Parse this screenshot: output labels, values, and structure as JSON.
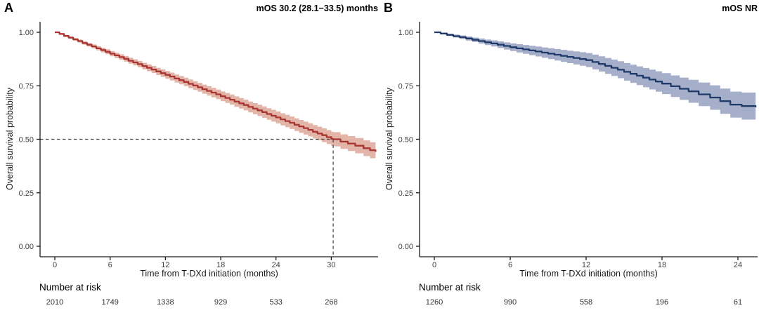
{
  "chart_data": [
    {
      "type": "line",
      "subtype": "kaplan-meier",
      "panel_label": "A",
      "title": "mOS 30.2 (28.1−33.5) months",
      "xlabel": "Time from T-DXd initiation (months)",
      "ylabel": "Overall survival probability",
      "x_ticks": [
        0,
        6,
        12,
        18,
        24,
        30
      ],
      "xlim": [
        0,
        35
      ],
      "y_ticks": [
        "0.00",
        "0.25",
        "0.50",
        "0.75",
        "1.00"
      ],
      "ylim": [
        0,
        1
      ],
      "line_color": "#A93532",
      "band_color": "#E2B5A8",
      "median": {
        "time": 30.2,
        "prob": 0.5
      },
      "survival": [
        [
          0,
          1.0
        ],
        [
          0.5,
          0.992
        ],
        [
          1,
          0.983
        ],
        [
          1.5,
          0.975
        ],
        [
          2,
          0.967
        ],
        [
          2.5,
          0.959
        ],
        [
          3,
          0.95
        ],
        [
          3.5,
          0.942
        ],
        [
          4,
          0.934
        ],
        [
          4.5,
          0.925
        ],
        [
          5,
          0.917
        ],
        [
          5.5,
          0.909
        ],
        [
          6,
          0.9
        ],
        [
          6.5,
          0.892
        ],
        [
          7,
          0.884
        ],
        [
          7.5,
          0.876
        ],
        [
          8,
          0.867
        ],
        [
          8.5,
          0.859
        ],
        [
          9,
          0.851
        ],
        [
          9.5,
          0.842
        ],
        [
          10,
          0.834
        ],
        [
          10.5,
          0.826
        ],
        [
          11,
          0.817
        ],
        [
          11.5,
          0.809
        ],
        [
          12,
          0.801
        ],
        [
          12.5,
          0.793
        ],
        [
          13,
          0.784
        ],
        [
          13.5,
          0.776
        ],
        [
          14,
          0.768
        ],
        [
          14.5,
          0.759
        ],
        [
          15,
          0.751
        ],
        [
          15.5,
          0.743
        ],
        [
          16,
          0.734
        ],
        [
          16.5,
          0.726
        ],
        [
          17,
          0.718
        ],
        [
          17.5,
          0.71
        ],
        [
          18,
          0.701
        ],
        [
          18.5,
          0.693
        ],
        [
          19,
          0.685
        ],
        [
          19.5,
          0.676
        ],
        [
          20,
          0.668
        ],
        [
          20.5,
          0.66
        ],
        [
          21,
          0.651
        ],
        [
          21.5,
          0.643
        ],
        [
          22,
          0.635
        ],
        [
          22.5,
          0.627
        ],
        [
          23,
          0.618
        ],
        [
          23.5,
          0.61
        ],
        [
          24,
          0.602
        ],
        [
          24.5,
          0.593
        ],
        [
          25,
          0.585
        ],
        [
          25.5,
          0.577
        ],
        [
          26,
          0.568
        ],
        [
          26.5,
          0.56
        ],
        [
          27,
          0.552
        ],
        [
          27.5,
          0.544
        ],
        [
          28,
          0.535
        ],
        [
          28.5,
          0.527
        ],
        [
          29,
          0.519
        ],
        [
          29.5,
          0.51
        ],
        [
          30,
          0.502
        ],
        [
          30.2,
          0.5
        ],
        [
          31,
          0.489
        ],
        [
          31.8,
          0.48
        ],
        [
          32.6,
          0.47
        ],
        [
          33.5,
          0.458
        ],
        [
          34.2,
          0.449
        ],
        [
          34.8,
          0.442
        ]
      ],
      "ci_halfwidth": [
        [
          0,
          0.003
        ],
        [
          6,
          0.012
        ],
        [
          12,
          0.018
        ],
        [
          18,
          0.023
        ],
        [
          24,
          0.028
        ],
        [
          30,
          0.033
        ],
        [
          34.8,
          0.038
        ]
      ],
      "number_at_risk": {
        "label": "Number at risk",
        "times": [
          0,
          6,
          12,
          18,
          24,
          30
        ],
        "values": [
          "2010",
          "1749",
          "1338",
          "929",
          "533",
          "268"
        ]
      }
    },
    {
      "type": "line",
      "subtype": "kaplan-meier",
      "panel_label": "B",
      "title": "mOS NR",
      "xlabel": "Time from T-DXd initiation (months)",
      "ylabel": "Overall survival probability",
      "x_ticks": [
        0,
        6,
        12,
        18,
        24
      ],
      "xlim": [
        0,
        25.5
      ],
      "y_ticks": [
        "0.00",
        "0.25",
        "0.50",
        "0.75",
        "1.00"
      ],
      "ylim": [
        0,
        1
      ],
      "line_color": "#1F3A68",
      "band_color": "#A6AFC9",
      "median": null,
      "survival": [
        [
          0,
          1.0
        ],
        [
          0.5,
          0.994
        ],
        [
          1,
          0.988
        ],
        [
          1.5,
          0.982
        ],
        [
          2,
          0.977
        ],
        [
          2.5,
          0.971
        ],
        [
          3,
          0.965
        ],
        [
          3.5,
          0.959
        ],
        [
          4,
          0.953
        ],
        [
          4.5,
          0.948
        ],
        [
          5,
          0.942
        ],
        [
          5.5,
          0.936
        ],
        [
          6,
          0.93
        ],
        [
          6.5,
          0.925
        ],
        [
          7,
          0.92
        ],
        [
          7.5,
          0.915
        ],
        [
          8,
          0.91
        ],
        [
          8.5,
          0.905
        ],
        [
          9,
          0.9
        ],
        [
          9.5,
          0.895
        ],
        [
          10,
          0.89
        ],
        [
          10.5,
          0.885
        ],
        [
          11,
          0.88
        ],
        [
          11.5,
          0.875
        ],
        [
          12,
          0.87
        ],
        [
          12.5,
          0.861
        ],
        [
          13,
          0.852
        ],
        [
          13.5,
          0.843
        ],
        [
          14,
          0.834
        ],
        [
          14.5,
          0.825
        ],
        [
          15,
          0.815
        ],
        [
          15.5,
          0.806
        ],
        [
          16,
          0.797
        ],
        [
          16.5,
          0.788
        ],
        [
          17,
          0.779
        ],
        [
          17.5,
          0.77
        ],
        [
          18,
          0.76
        ],
        [
          18.7,
          0.748
        ],
        [
          19.4,
          0.736
        ],
        [
          20.1,
          0.724
        ],
        [
          20.9,
          0.71
        ],
        [
          21.8,
          0.695
        ],
        [
          22.6,
          0.678
        ],
        [
          23.4,
          0.662
        ],
        [
          24.3,
          0.655
        ],
        [
          25.4,
          0.65
        ]
      ],
      "ci_halfwidth": [
        [
          0,
          0.003
        ],
        [
          6,
          0.018
        ],
        [
          12,
          0.033
        ],
        [
          18,
          0.049
        ],
        [
          24,
          0.062
        ],
        [
          25.4,
          0.068
        ]
      ],
      "number_at_risk": {
        "label": "Number at risk",
        "times": [
          0,
          6,
          12,
          18,
          24
        ],
        "values": [
          "1260",
          "990",
          "558",
          "196",
          "61"
        ]
      }
    }
  ]
}
